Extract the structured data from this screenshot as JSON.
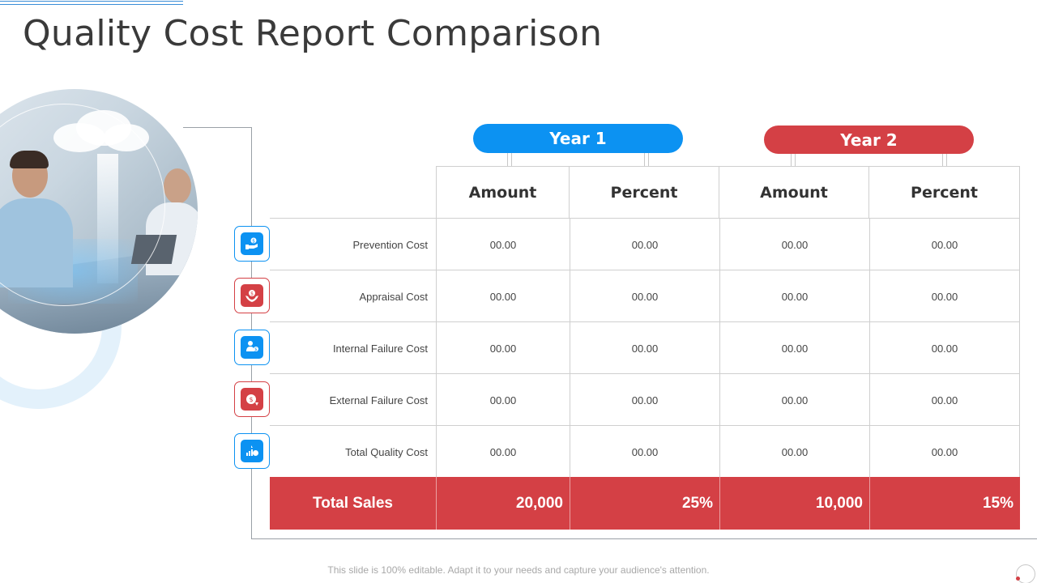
{
  "slide": {
    "title": "Quality Cost Report Comparison",
    "footer": "This slide is 100% editable. Adapt it to your needs and capture your audience's attention."
  },
  "years": [
    {
      "label": "Year 1",
      "color": "#0c92f2"
    },
    {
      "label": "Year 2",
      "color": "#d44045"
    }
  ],
  "columns": [
    "Amount",
    "Percent",
    "Amount",
    "Percent"
  ],
  "rows": [
    {
      "label": "Prevention  Cost",
      "icon": "hand-dollar-icon",
      "values": [
        "00.00",
        "00.00",
        "00.00",
        "00.00"
      ]
    },
    {
      "label": "Appraisal Cost",
      "icon": "hands-coin-icon",
      "values": [
        "00.00",
        "00.00",
        "00.00",
        "00.00"
      ]
    },
    {
      "label": "Internal  Failure Cost",
      "icon": "people-dollar-icon",
      "values": [
        "00.00",
        "00.00",
        "00.00",
        "00.00"
      ]
    },
    {
      "label": "External Failure  Cost",
      "icon": "coin-refresh-icon",
      "values": [
        "00.00",
        "00.00",
        "00.00",
        "00.00"
      ]
    },
    {
      "label": "Total Quality Cost",
      "icon": "bar-chart-coin-icon",
      "values": [
        "00.00",
        "00.00",
        "00.00",
        "00.00"
      ]
    }
  ],
  "total": {
    "label": "Total Sales",
    "values": [
      "20,000",
      "25%",
      "10,000",
      "15%"
    ]
  },
  "colors": {
    "blue": "#0c92f2",
    "red": "#d44045"
  }
}
